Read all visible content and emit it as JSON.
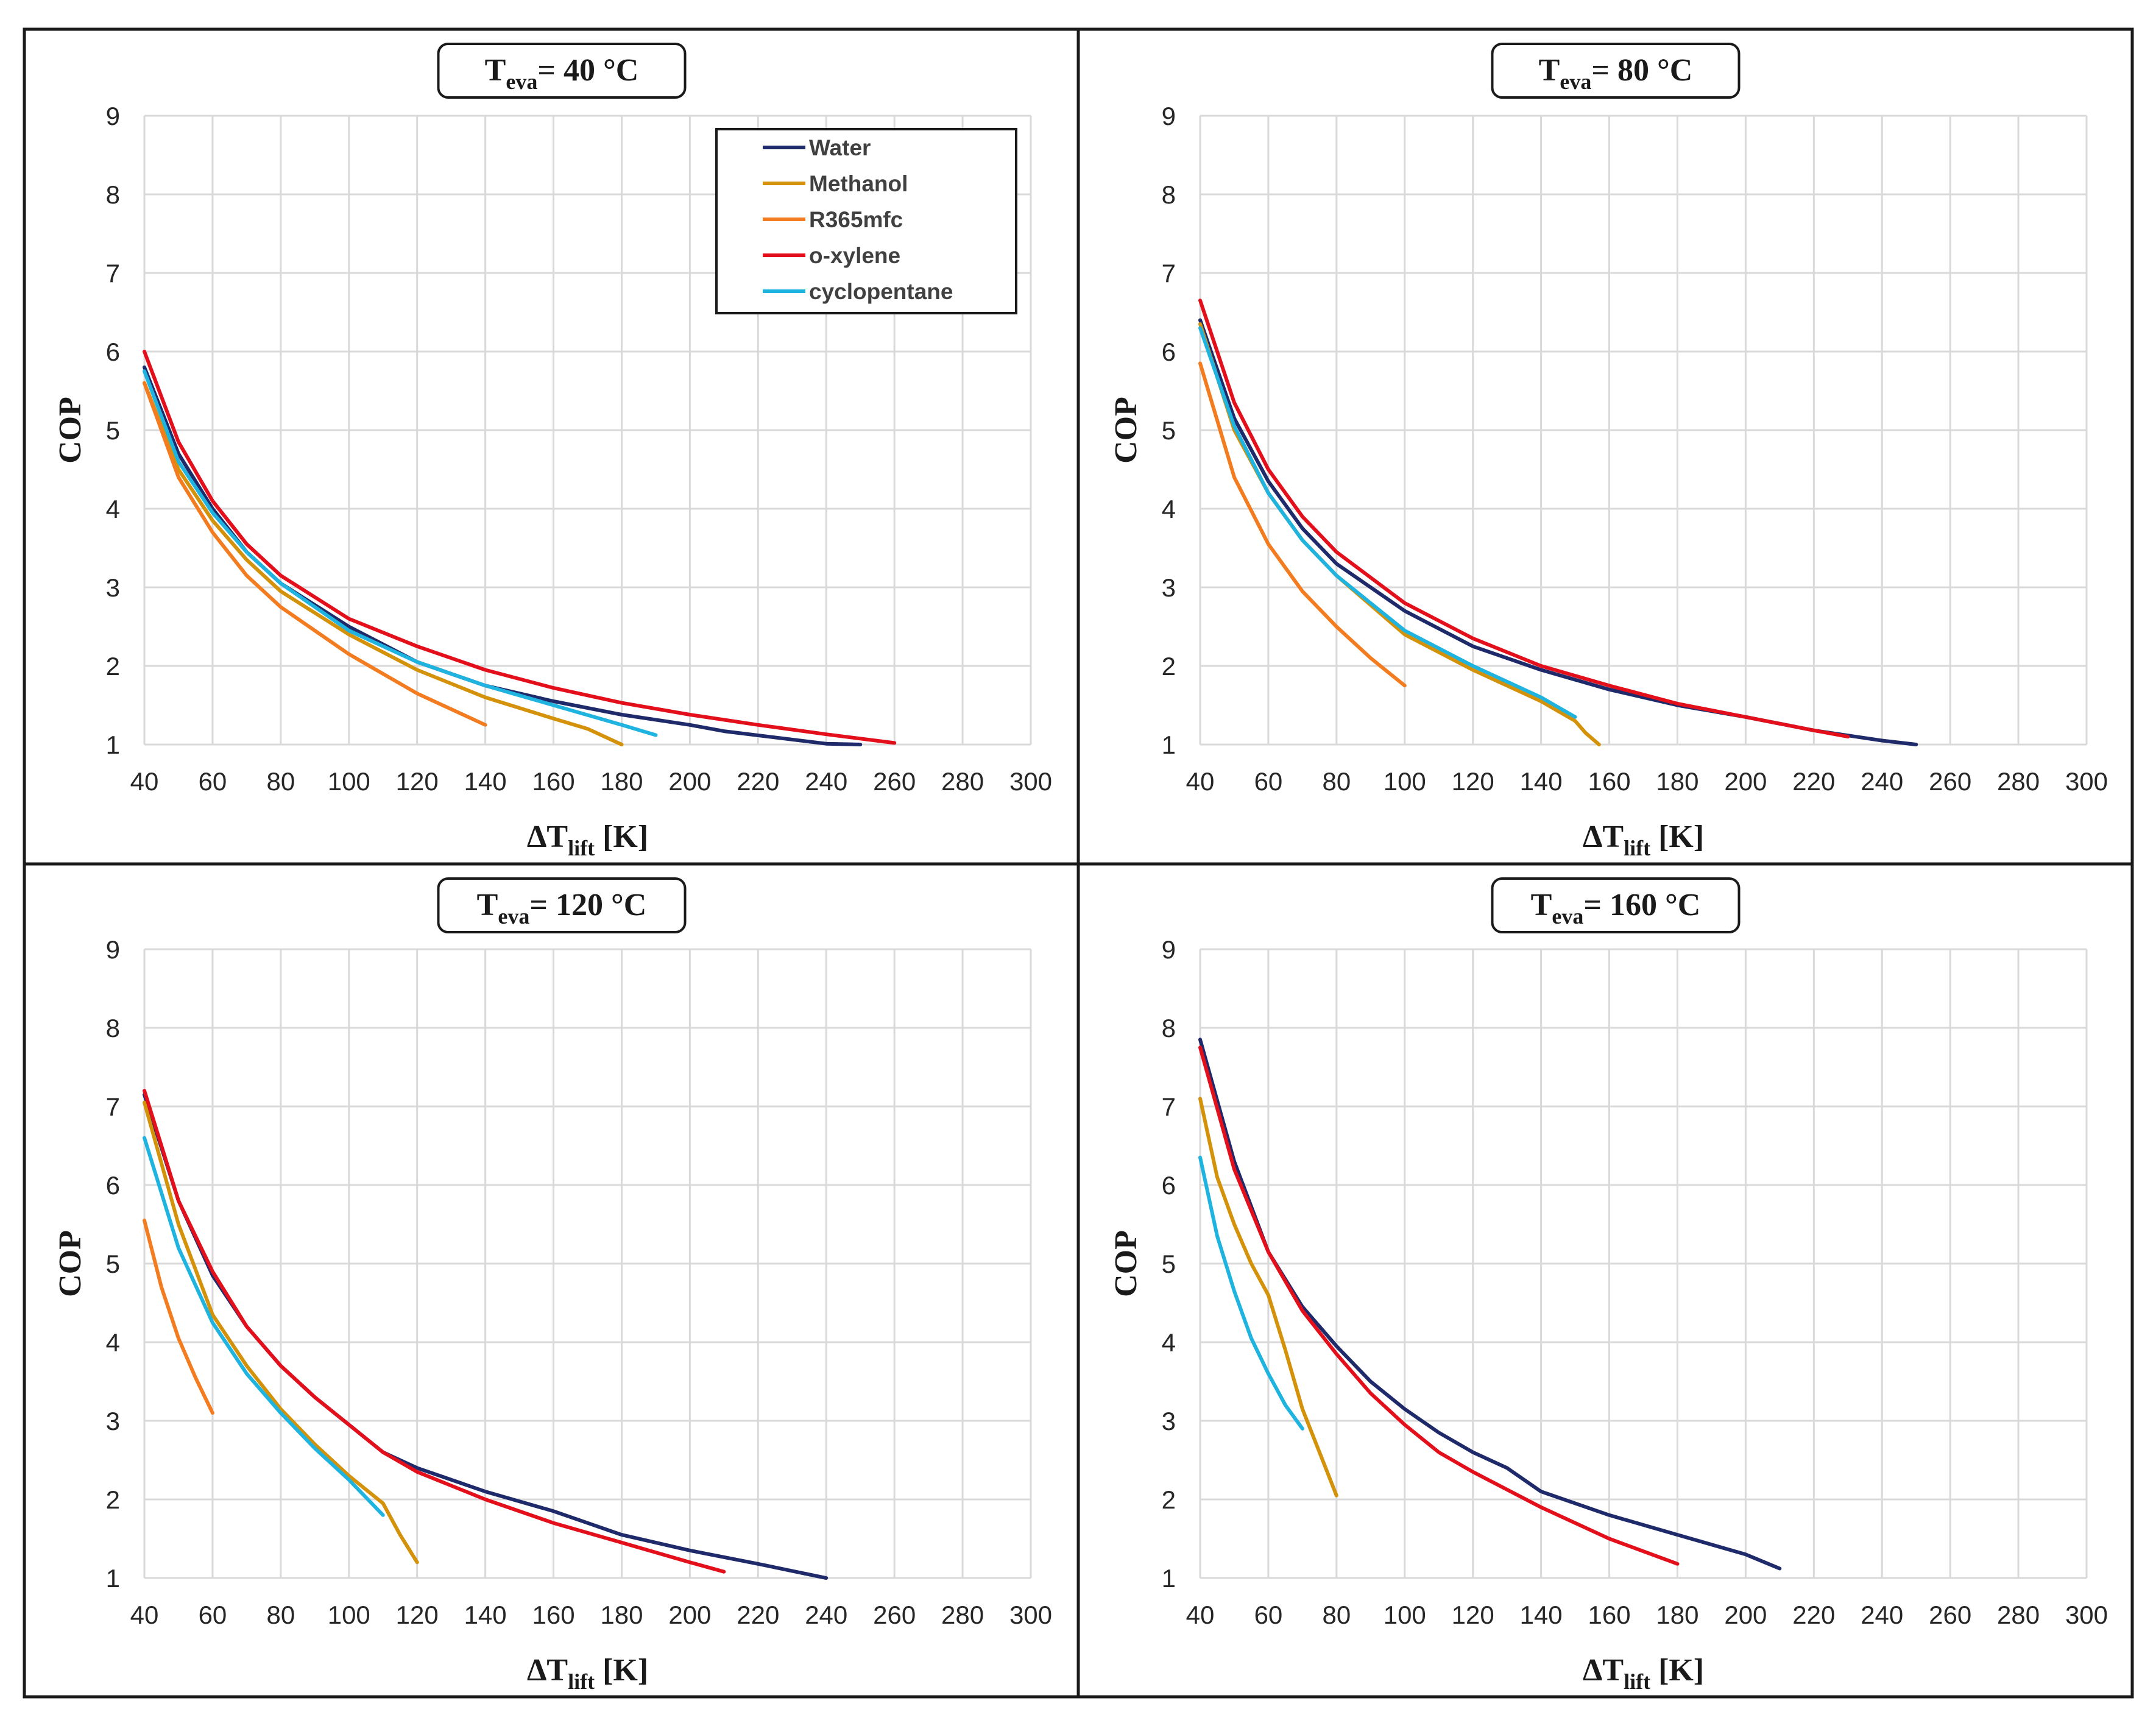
{
  "colors": {
    "Water": "#1f2a6b",
    "Methanol": "#d4920a",
    "R365mfc": "#f47c20",
    "o-xylene": "#e3101c",
    "cyclopentane": "#1fb3e0",
    "grid": "#d9d9d9",
    "border": "#1a1a1a"
  },
  "chart_data": [
    {
      "type": "line",
      "title_main": "T",
      "title_sub": "eva",
      "title_rest": "= 40 °C",
      "xlabel_main": "ΔT",
      "xlabel_sub": "lift",
      "xlabel_rest": " [K]",
      "ylabel": "COP",
      "xlim": [
        40,
        300
      ],
      "ylim": [
        1,
        9
      ],
      "xticks": [
        "40",
        "60",
        "80",
        "100",
        "120",
        "140",
        "160",
        "180",
        "200",
        "220",
        "240",
        "260",
        "280",
        "300"
      ],
      "yticks": [
        "1",
        "2",
        "3",
        "4",
        "5",
        "6",
        "7",
        "8",
        "9"
      ],
      "grid": true,
      "legend": {
        "show": true,
        "position": "top-right",
        "entries": [
          "Water",
          "Methanol",
          "R365mfc",
          "o-xylene",
          "cyclopentane"
        ]
      },
      "series": [
        {
          "name": "Water",
          "x": [
            40,
            50,
            60,
            70,
            80,
            100,
            120,
            140,
            160,
            180,
            200,
            210,
            240,
            250
          ],
          "y": [
            5.8,
            4.7,
            4.0,
            3.45,
            3.05,
            2.5,
            2.05,
            1.75,
            1.55,
            1.38,
            1.25,
            1.17,
            1.01,
            1.0
          ]
        },
        {
          "name": "Methanol",
          "x": [
            40,
            50,
            60,
            70,
            80,
            100,
            120,
            140,
            160,
            170,
            180
          ],
          "y": [
            5.6,
            4.5,
            3.85,
            3.35,
            2.95,
            2.4,
            1.95,
            1.6,
            1.33,
            1.2,
            1.0
          ]
        },
        {
          "name": "R365mfc",
          "x": [
            40,
            50,
            60,
            70,
            80,
            100,
            120,
            140
          ],
          "y": [
            5.6,
            4.4,
            3.7,
            3.15,
            2.75,
            2.15,
            1.65,
            1.25
          ]
        },
        {
          "name": "o-xylene",
          "x": [
            40,
            50,
            60,
            70,
            80,
            100,
            120,
            140,
            160,
            180,
            200,
            220,
            240,
            260
          ],
          "y": [
            6.0,
            4.85,
            4.1,
            3.55,
            3.15,
            2.6,
            2.25,
            1.95,
            1.72,
            1.53,
            1.38,
            1.25,
            1.13,
            1.02
          ]
        },
        {
          "name": "cyclopentane",
          "x": [
            40,
            50,
            60,
            70,
            80,
            100,
            120,
            140,
            160,
            180,
            190
          ],
          "y": [
            5.75,
            4.6,
            3.95,
            3.45,
            3.05,
            2.45,
            2.05,
            1.75,
            1.5,
            1.25,
            1.12
          ]
        }
      ]
    },
    {
      "type": "line",
      "title_main": "T",
      "title_sub": "eva",
      "title_rest": "= 80 °C",
      "xlabel_main": "ΔT",
      "xlabel_sub": "lift",
      "xlabel_rest": " [K]",
      "ylabel": "COP",
      "xlim": [
        40,
        300
      ],
      "ylim": [
        1,
        9
      ],
      "xticks": [
        "40",
        "60",
        "80",
        "100",
        "120",
        "140",
        "160",
        "180",
        "200",
        "220",
        "240",
        "260",
        "280",
        "300"
      ],
      "yticks": [
        "1",
        "2",
        "3",
        "4",
        "5",
        "6",
        "7",
        "8",
        "9"
      ],
      "grid": true,
      "legend": {
        "show": false
      },
      "series": [
        {
          "name": "Water",
          "x": [
            40,
            50,
            60,
            70,
            80,
            100,
            120,
            140,
            160,
            180,
            200,
            220,
            240,
            250
          ],
          "y": [
            6.4,
            5.15,
            4.35,
            3.75,
            3.3,
            2.7,
            2.25,
            1.95,
            1.7,
            1.5,
            1.35,
            1.18,
            1.05,
            1.0
          ]
        },
        {
          "name": "Methanol",
          "x": [
            40,
            50,
            60,
            70,
            80,
            100,
            120,
            140,
            150,
            153,
            157
          ],
          "y": [
            6.35,
            5.0,
            4.2,
            3.6,
            3.15,
            2.4,
            1.95,
            1.55,
            1.3,
            1.15,
            1.0
          ]
        },
        {
          "name": "R365mfc",
          "x": [
            40,
            50,
            60,
            70,
            80,
            90,
            100
          ],
          "y": [
            5.85,
            4.4,
            3.55,
            2.95,
            2.5,
            2.1,
            1.75
          ]
        },
        {
          "name": "o-xylene",
          "x": [
            40,
            50,
            60,
            70,
            80,
            100,
            120,
            140,
            160,
            180,
            200,
            220,
            230
          ],
          "y": [
            6.65,
            5.35,
            4.5,
            3.9,
            3.45,
            2.8,
            2.35,
            2.0,
            1.75,
            1.52,
            1.35,
            1.18,
            1.1
          ]
        },
        {
          "name": "cyclopentane",
          "x": [
            40,
            50,
            60,
            70,
            80,
            100,
            120,
            140,
            150
          ],
          "y": [
            6.3,
            5.05,
            4.2,
            3.6,
            3.15,
            2.45,
            2.0,
            1.6,
            1.35
          ]
        }
      ]
    },
    {
      "type": "line",
      "title_main": "T",
      "title_sub": "eva",
      "title_rest": "= 120 °C",
      "xlabel_main": "ΔT",
      "xlabel_sub": "lift",
      "xlabel_rest": " [K]",
      "ylabel": "COP",
      "xlim": [
        40,
        300
      ],
      "ylim": [
        1,
        9
      ],
      "xticks": [
        "40",
        "60",
        "80",
        "100",
        "120",
        "140",
        "160",
        "180",
        "200",
        "220",
        "240",
        "260",
        "280",
        "300"
      ],
      "yticks": [
        "1",
        "2",
        "3",
        "4",
        "5",
        "6",
        "7",
        "8",
        "9"
      ],
      "grid": true,
      "legend": {
        "show": false
      },
      "series": [
        {
          "name": "Water",
          "x": [
            40,
            50,
            60,
            70,
            80,
            90,
            100,
            110,
            120,
            140,
            160,
            170,
            180,
            200,
            220,
            240
          ],
          "y": [
            7.15,
            5.8,
            4.85,
            4.2,
            3.7,
            3.3,
            2.95,
            2.6,
            2.4,
            2.1,
            1.85,
            1.7,
            1.55,
            1.35,
            1.18,
            1.0
          ]
        },
        {
          "name": "Methanol",
          "x": [
            40,
            50,
            60,
            70,
            80,
            90,
            100,
            110,
            115,
            120
          ],
          "y": [
            7.05,
            5.5,
            4.35,
            3.7,
            3.15,
            2.7,
            2.3,
            1.95,
            1.55,
            1.2
          ]
        },
        {
          "name": "R365mfc",
          "x": [
            40,
            45,
            50,
            55,
            60
          ],
          "y": [
            5.55,
            4.7,
            4.05,
            3.55,
            3.1
          ]
        },
        {
          "name": "o-xylene",
          "x": [
            40,
            50,
            60,
            70,
            80,
            90,
            100,
            110,
            120,
            140,
            160,
            180,
            200,
            210
          ],
          "y": [
            7.2,
            5.8,
            4.9,
            4.2,
            3.7,
            3.3,
            2.95,
            2.6,
            2.35,
            2.0,
            1.7,
            1.45,
            1.2,
            1.08
          ]
        },
        {
          "name": "cyclopentane",
          "x": [
            40,
            50,
            60,
            70,
            80,
            90,
            100,
            110
          ],
          "y": [
            6.6,
            5.2,
            4.25,
            3.6,
            3.1,
            2.65,
            2.25,
            1.8
          ]
        }
      ]
    },
    {
      "type": "line",
      "title_main": "T",
      "title_sub": "eva",
      "title_rest": "= 160 °C",
      "xlabel_main": "ΔT",
      "xlabel_sub": "lift",
      "xlabel_rest": " [K]",
      "ylabel": "COP",
      "xlim": [
        40,
        300
      ],
      "ylim": [
        1,
        9
      ],
      "xticks": [
        "40",
        "60",
        "80",
        "100",
        "120",
        "140",
        "160",
        "180",
        "200",
        "220",
        "240",
        "260",
        "280",
        "300"
      ],
      "yticks": [
        "1",
        "2",
        "3",
        "4",
        "5",
        "6",
        "7",
        "8",
        "9"
      ],
      "grid": true,
      "legend": {
        "show": false
      },
      "series": [
        {
          "name": "Water",
          "x": [
            40,
            50,
            60,
            70,
            80,
            90,
            100,
            110,
            120,
            130,
            140,
            160,
            180,
            200,
            210
          ],
          "y": [
            7.85,
            6.3,
            5.15,
            4.45,
            3.95,
            3.5,
            3.15,
            2.85,
            2.6,
            2.4,
            2.1,
            1.8,
            1.55,
            1.3,
            1.12
          ]
        },
        {
          "name": "Methanol",
          "x": [
            40,
            45,
            50,
            55,
            60,
            65,
            70,
            75,
            80
          ],
          "y": [
            7.1,
            6.1,
            5.5,
            5.0,
            4.6,
            3.9,
            3.15,
            2.6,
            2.05
          ]
        },
        {
          "name": "o-xylene",
          "x": [
            40,
            50,
            60,
            70,
            80,
            90,
            100,
            110,
            120,
            140,
            160,
            180
          ],
          "y": [
            7.75,
            6.2,
            5.15,
            4.4,
            3.85,
            3.35,
            2.95,
            2.6,
            2.35,
            1.9,
            1.5,
            1.18
          ]
        },
        {
          "name": "cyclopentane",
          "x": [
            40,
            45,
            50,
            55,
            60,
            65,
            70
          ],
          "y": [
            6.35,
            5.35,
            4.65,
            4.05,
            3.6,
            3.2,
            2.9
          ]
        }
      ]
    }
  ]
}
